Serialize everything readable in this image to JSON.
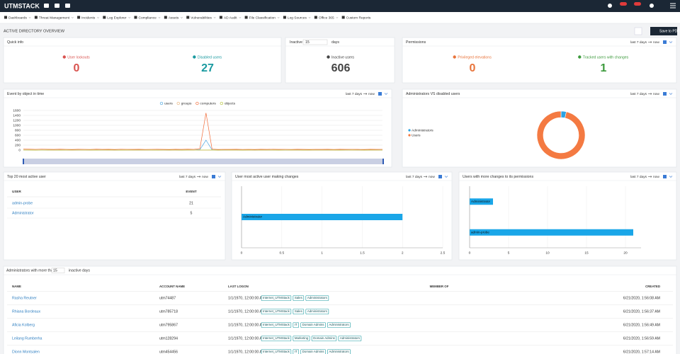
{
  "navbar": {
    "logo": "UTMSTACK"
  },
  "menu": [
    "Dashboards",
    "Threat Management",
    "Incidents",
    "Log Explorer",
    "Compliance",
    "Assets",
    "Vulnerabilities",
    "AD Audit",
    "File Classification",
    "Log Sources",
    "Office 365",
    "Custom Reports"
  ],
  "page_title": "ACTIVE DIRECTORY OVERVIEW",
  "save_button": "Save to PDF",
  "quick_info": {
    "title": "Quick info",
    "stats": [
      {
        "label": "User lockouts",
        "value": 0,
        "color": "#d9534f"
      },
      {
        "label": "Disabled users",
        "value": 27,
        "color": "#1a9aa0"
      }
    ]
  },
  "inactive": {
    "label": "Inactive",
    "days": 15,
    "unit": "days",
    "stat": {
      "label": "Inactive users",
      "value": 606,
      "color": "#444444"
    }
  },
  "permissions": {
    "title": "Permissions",
    "time_range": {
      "from": "last 7 days",
      "to": "now"
    },
    "stats": [
      {
        "label": "Privileged elevations",
        "value": 0,
        "color": "#e8743b"
      },
      {
        "label": "Tracked users with changes",
        "value": 1,
        "color": "#3c9a3c"
      }
    ]
  },
  "chart_data": [
    {
      "type": "line",
      "title": "Event by object in time",
      "time_range": {
        "from": "last 7 days",
        "to": "now"
      },
      "ylim": [
        0,
        1600
      ],
      "yticks": [
        0,
        200,
        400,
        600,
        800,
        1000,
        1200,
        1400,
        1600
      ],
      "grid": true,
      "legend": "top",
      "series": [
        {
          "name": "users",
          "color": "#4ba6e0",
          "values": [
            5,
            4,
            6,
            5,
            3,
            5,
            4,
            6,
            5,
            4,
            5,
            3,
            4,
            6,
            5,
            4,
            5,
            3,
            6,
            4,
            5,
            4,
            6,
            5,
            3,
            5,
            4,
            6,
            5,
            20,
            400,
            10,
            5,
            4,
            6,
            5,
            3,
            5,
            4,
            6,
            5,
            4,
            5,
            3,
            6,
            4,
            5,
            4,
            6,
            5,
            3,
            5,
            4,
            6,
            5,
            4,
            5,
            3,
            6,
            5
          ]
        },
        {
          "name": "groups",
          "color": "#e8b27a",
          "values": [
            0,
            1,
            0,
            2,
            0,
            1,
            0,
            0,
            1,
            0,
            0,
            1,
            0,
            2,
            0,
            1,
            0,
            0,
            1,
            0,
            0,
            1,
            0,
            2,
            0,
            1,
            0,
            0,
            1,
            0,
            0,
            1,
            0,
            2,
            0,
            1,
            0,
            0,
            1,
            0,
            0,
            1,
            0,
            2,
            0,
            1,
            0,
            0,
            1,
            0,
            0,
            1,
            0,
            2,
            0,
            1,
            0,
            0,
            1,
            0
          ]
        },
        {
          "name": "computers",
          "color": "#f26a36",
          "values": [
            40,
            35,
            30,
            38,
            32,
            28,
            36,
            30,
            25,
            33,
            30,
            27,
            35,
            29,
            31,
            26,
            34,
            30,
            28,
            32,
            27,
            30,
            33,
            29,
            26,
            31,
            28,
            35,
            30,
            60,
            1500,
            40,
            25,
            30,
            28,
            32,
            27,
            30,
            26,
            31,
            29,
            33,
            28,
            30,
            27,
            32,
            29,
            26,
            30,
            28,
            31,
            27,
            33,
            29,
            30,
            28,
            26,
            31,
            29,
            30
          ]
        },
        {
          "name": "objects",
          "color": "#b5c334",
          "values": [
            2,
            3,
            1,
            2,
            3,
            2,
            1,
            3,
            2,
            2,
            2,
            3,
            1,
            2,
            3,
            2,
            1,
            3,
            2,
            2,
            2,
            3,
            1,
            2,
            3,
            2,
            1,
            3,
            2,
            2,
            2,
            3,
            1,
            2,
            3,
            2,
            1,
            3,
            2,
            2,
            2,
            3,
            1,
            2,
            3,
            2,
            1,
            3,
            2,
            2,
            2,
            3,
            1,
            2,
            3,
            2,
            1,
            3,
            2,
            2
          ]
        }
      ]
    },
    {
      "type": "pie",
      "donut": true,
      "title": "Administrators VS disabled users",
      "time_range": {
        "from": "last 7 days",
        "to": "now"
      },
      "categories": [
        "Administrators",
        "Users"
      ],
      "values": [
        1,
        27
      ],
      "colors": [
        "#2ba3e3",
        "#f47a42"
      ],
      "legend": "left"
    },
    {
      "type": "bar",
      "orientation": "horizontal",
      "title": "User most active user making changes",
      "time_range": {
        "from": "last 7 days",
        "to": "now"
      },
      "categories": [
        "Administrator"
      ],
      "values": [
        2
      ],
      "color": "#1aa6e8",
      "xlim": [
        0,
        2.5
      ],
      "xticks": [
        0,
        0.5,
        1,
        1.5,
        2,
        2.5
      ],
      "grid": true
    },
    {
      "type": "bar",
      "orientation": "horizontal",
      "title": "Users with more changes to its permissions",
      "time_range": {
        "from": "last 7 days",
        "to": "now"
      },
      "categories": [
        "Administrator",
        "admin-probe"
      ],
      "values": [
        3,
        21
      ],
      "color": "#1aa6e8",
      "xlim": [
        0,
        22
      ],
      "xticks": [
        0,
        5,
        10,
        15,
        20
      ],
      "grid": true
    }
  ],
  "top_users": {
    "title": "Top 20 most active user",
    "time_range": {
      "from": "last 7 days",
      "to": "now"
    },
    "columns": [
      "USER",
      "EVENT"
    ],
    "rows": [
      [
        "admin-probe",
        21
      ],
      [
        "Administrator",
        5
      ]
    ]
  },
  "admins": {
    "title_prefix": "Administrators with more than",
    "days": 15,
    "title_suffix": "inactive days",
    "columns": [
      "NAME",
      "ACCOUNT NAME",
      "LAST LOGON",
      "MEMBER OF",
      "CREATED"
    ],
    "rows": [
      {
        "name": "Rasha Reutner",
        "account": "utm74487",
        "last_logon": "1/1/1970, 12:00:00 AM",
        "member_of": [
          "Internet_UTMStack",
          "Sales",
          "Administrators"
        ],
        "created": "6/21/2020, 1:56:08 AM"
      },
      {
        "name": "Rhiana Bordeaux",
        "account": "utm785718",
        "last_logon": "1/1/1970, 12:00:00 AM",
        "member_of": [
          "Internet_UTMStack",
          "Sales",
          "Administrators"
        ],
        "created": "6/21/2020, 1:56:37 AM"
      },
      {
        "name": "Aficia Kolberg",
        "account": "utm795867",
        "last_logon": "1/1/1970, 12:00:00 AM",
        "member_of": [
          "Internet_UTMStack",
          "IT",
          "Domain Admins",
          "Administrators"
        ],
        "created": "6/21/2020, 1:56:49 AM"
      },
      {
        "name": "Leilang Rumberha",
        "account": "utm128294",
        "last_logon": "1/1/1970, 12:00:00 AM",
        "member_of": [
          "Internet_UTMStack",
          "Marketing",
          "Domain Admins",
          "Administrators"
        ],
        "created": "6/21/2020, 1:56:59 AM"
      },
      {
        "name": "Dionn Montsalen",
        "account": "utm454456",
        "last_logon": "1/1/1970, 12:00:00 AM",
        "member_of": [
          "Internet_UTMStack",
          "IT",
          "Domain Admins",
          "Administrators"
        ],
        "created": "6/21/2020, 1:57:14 AM"
      }
    ]
  }
}
